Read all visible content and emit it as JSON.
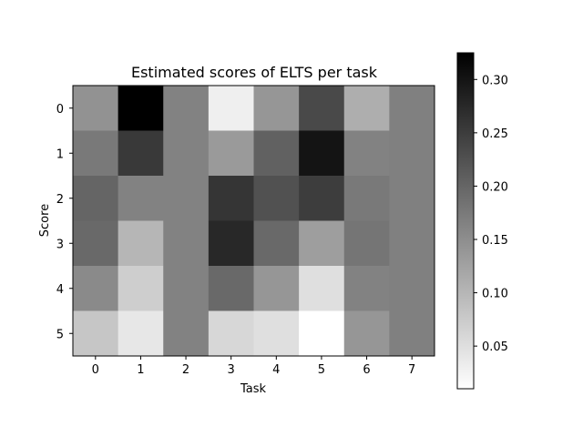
{
  "chart_data": {
    "type": "heatmap",
    "title": "Estimated scores of ELTS per task",
    "xlabel": "Task",
    "ylabel": "Score",
    "x_categories": [
      "0",
      "1",
      "2",
      "3",
      "4",
      "5",
      "6",
      "7"
    ],
    "y_categories": [
      "0",
      "1",
      "2",
      "3",
      "4",
      "5"
    ],
    "colormap": "gray_r",
    "colorbar": {
      "min": 0.01,
      "max": 0.325,
      "ticks": [
        0.05,
        0.1,
        0.15,
        0.2,
        0.25,
        0.3
      ],
      "tick_labels": [
        "0.05",
        "0.10",
        "0.15",
        "0.20",
        "0.25",
        "0.30"
      ]
    },
    "values": [
      [
        0.145,
        0.325,
        0.165,
        0.03,
        0.14,
        0.235,
        0.11,
        0.167
      ],
      [
        0.175,
        0.255,
        0.165,
        0.135,
        0.205,
        0.3,
        0.165,
        0.167
      ],
      [
        0.2,
        0.165,
        0.165,
        0.26,
        0.225,
        0.25,
        0.175,
        0.167
      ],
      [
        0.195,
        0.1,
        0.165,
        0.275,
        0.195,
        0.13,
        0.18,
        0.167
      ],
      [
        0.155,
        0.07,
        0.165,
        0.195,
        0.14,
        0.05,
        0.165,
        0.167
      ],
      [
        0.08,
        0.04,
        0.165,
        0.06,
        0.05,
        0.01,
        0.14,
        0.167
      ]
    ]
  }
}
